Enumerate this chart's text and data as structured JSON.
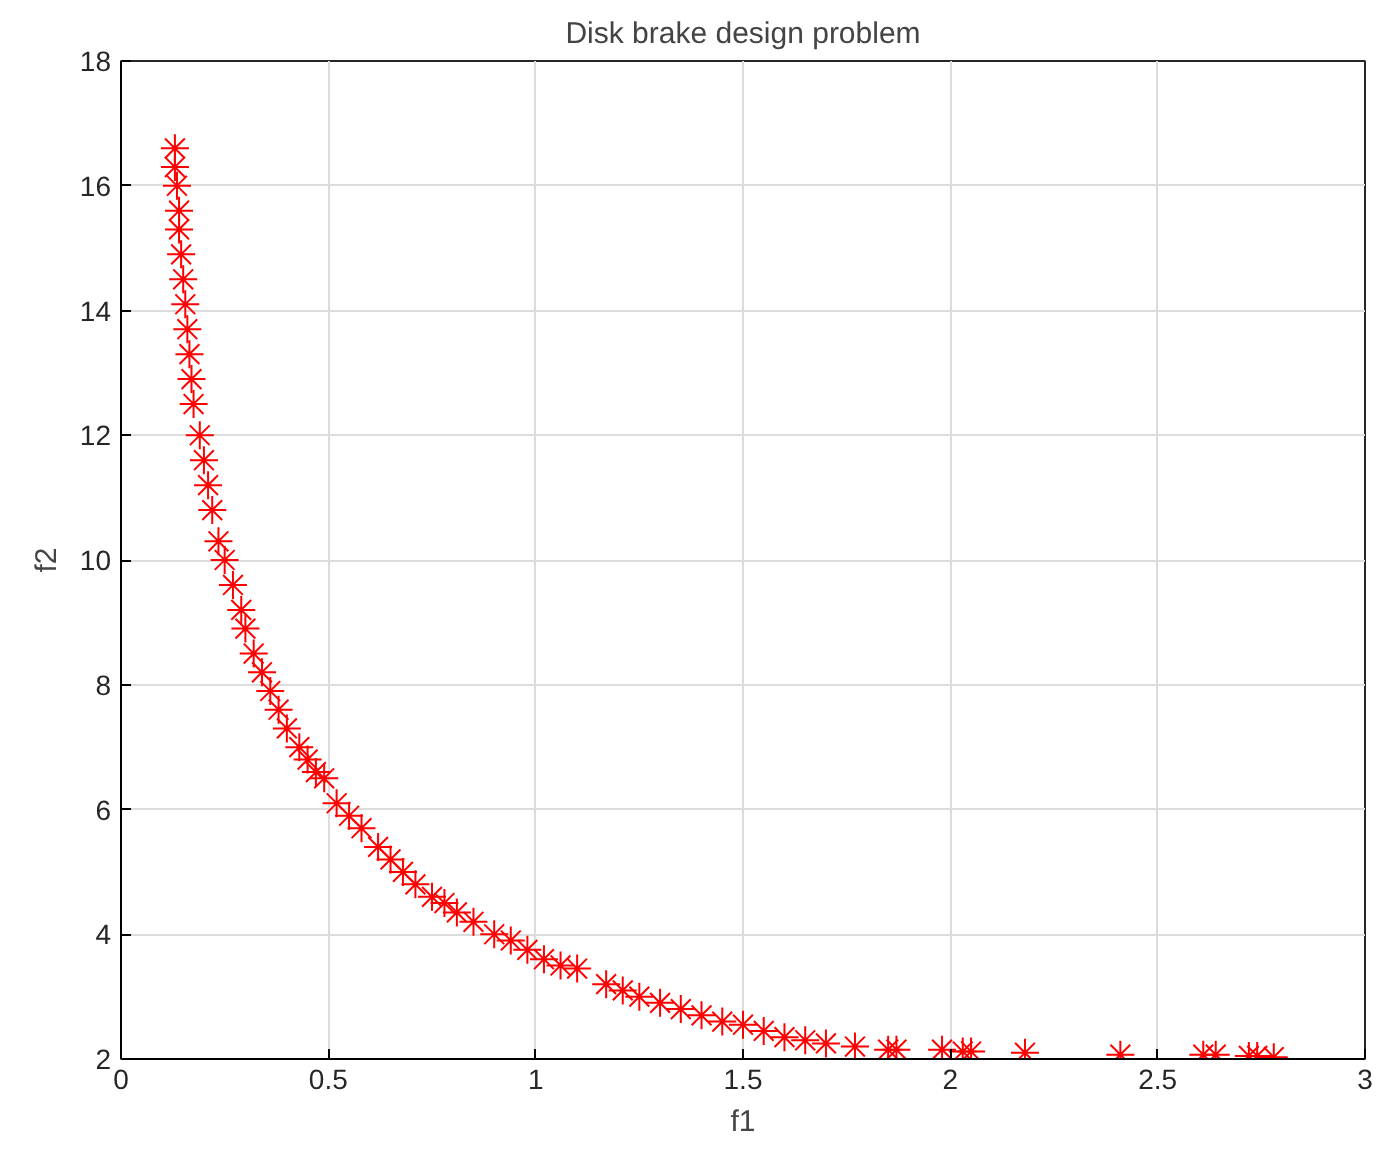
{
  "chart_data": {
    "type": "scatter",
    "title": "Disk brake design problem",
    "xlabel": "f1",
    "ylabel": "f2",
    "x": [
      0.13,
      0.13,
      0.135,
      0.14,
      0.14,
      0.145,
      0.15,
      0.155,
      0.16,
      0.165,
      0.17,
      0.175,
      0.19,
      0.2,
      0.21,
      0.22,
      0.235,
      0.25,
      0.27,
      0.29,
      0.3,
      0.32,
      0.34,
      0.36,
      0.38,
      0.4,
      0.43,
      0.45,
      0.47,
      0.49,
      0.52,
      0.55,
      0.58,
      0.62,
      0.65,
      0.68,
      0.71,
      0.75,
      0.78,
      0.81,
      0.85,
      0.9,
      0.94,
      0.98,
      1.02,
      1.06,
      1.1,
      1.17,
      1.21,
      1.25,
      1.3,
      1.35,
      1.4,
      1.45,
      1.5,
      1.55,
      1.6,
      1.65,
      1.7,
      1.77,
      1.85,
      1.87,
      1.98,
      2.03,
      2.05,
      2.18,
      2.41,
      2.61,
      2.64,
      2.72,
      2.74,
      2.78
    ],
    "series": [
      {
        "color": "#ff0000",
        "values": [
          16.6,
          16.3,
          16.0,
          15.6,
          15.3,
          14.9,
          14.5,
          14.1,
          13.7,
          13.3,
          12.9,
          12.5,
          12.0,
          11.6,
          11.2,
          10.8,
          10.3,
          10.0,
          9.6,
          9.2,
          8.9,
          8.5,
          8.2,
          7.9,
          7.6,
          7.3,
          7.0,
          6.8,
          6.6,
          6.5,
          6.1,
          5.9,
          5.7,
          5.4,
          5.2,
          5.0,
          4.8,
          4.6,
          4.5,
          4.35,
          4.2,
          4.0,
          3.9,
          3.75,
          3.6,
          3.5,
          3.45,
          3.2,
          3.1,
          3.0,
          2.9,
          2.8,
          2.7,
          2.6,
          2.55,
          2.45,
          2.35,
          2.3,
          2.25,
          2.2,
          2.15,
          2.15,
          2.15,
          2.12,
          2.12,
          2.1,
          2.07,
          2.07,
          2.07,
          2.05,
          2.05,
          2.03
        ]
      }
    ],
    "xlim": [
      0,
      3
    ],
    "xticks": [
      0,
      0.5,
      1,
      1.5,
      2,
      2.5,
      3
    ],
    "ylim": [
      2,
      18
    ],
    "yticks": [
      2,
      4,
      6,
      8,
      10,
      12,
      14,
      16,
      18
    ],
    "grid": true,
    "marker": "cross"
  }
}
